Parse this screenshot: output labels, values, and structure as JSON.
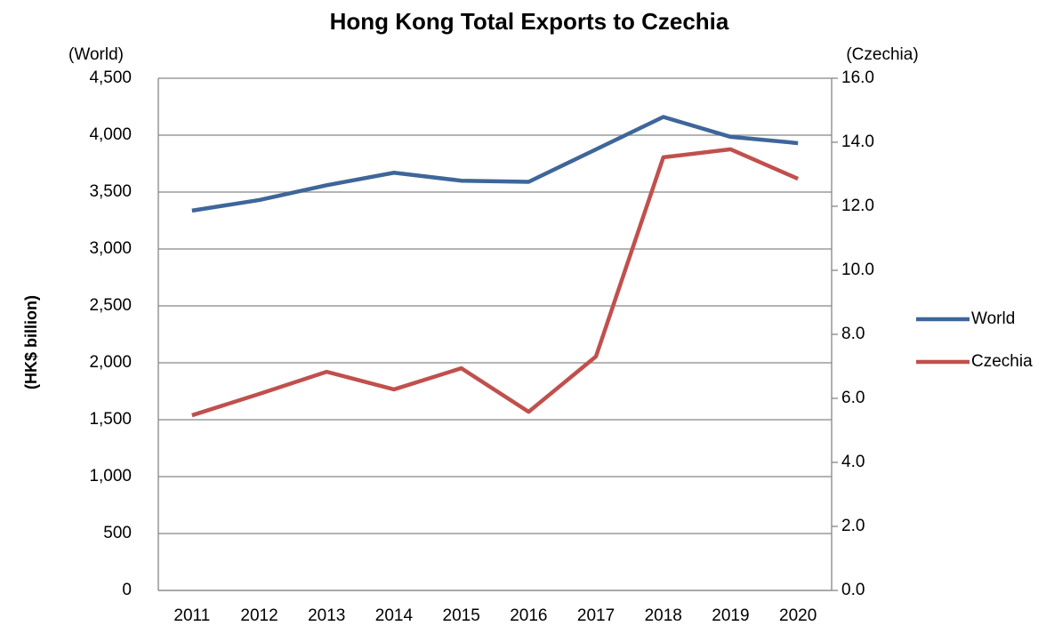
{
  "chart_data": {
    "type": "line",
    "title": "Hong Kong Total Exports to Czechia",
    "y_axis_label": "(HK$ billion)",
    "y_axis_title": "(World)",
    "y2_axis_title": "(Czechia)",
    "categories": [
      "2011",
      "2012",
      "2013",
      "2014",
      "2015",
      "2016",
      "2017",
      "2018",
      "2019",
      "2020"
    ],
    "series": [
      {
        "name": "World",
        "color": "#3e6699",
        "values": [
          3337,
          3430,
          3560,
          3670,
          3600,
          3590,
          3875,
          4160,
          3985,
          3930
        ]
      },
      {
        "name": "Czechia",
        "color": "#c0504d",
        "axis": "y2",
        "values": [
          5.47,
          6.14,
          6.83,
          6.28,
          6.94,
          5.58,
          7.31,
          13.53,
          13.78,
          12.86
        ]
      }
    ],
    "ylim": [
      0,
      4500
    ],
    "yticks": [
      0,
      500,
      {
        "value": 1000,
        "label": "1,000"
      },
      {
        "value": 1500,
        "label": "1,500"
      },
      {
        "value": 2000,
        "label": "2,000"
      },
      {
        "value": 2500,
        "label": "2,500"
      },
      {
        "value": 3000,
        "label": "3,000"
      },
      {
        "value": 3500,
        "label": "3,500"
      },
      {
        "value": 4000,
        "label": "4,000"
      },
      {
        "value": 4500,
        "label": "4,500"
      }
    ],
    "y2lim": [
      0,
      16
    ],
    "y2ticks": [
      {
        "value": 0,
        "label": "0.0"
      },
      {
        "value": 2,
        "label": "2.0"
      },
      {
        "value": 4,
        "label": "4.0"
      },
      {
        "value": 6,
        "label": "6.0"
      },
      {
        "value": 8,
        "label": "8.0"
      },
      {
        "value": 10,
        "label": "10.0"
      },
      {
        "value": 12,
        "label": "12.0"
      },
      {
        "value": 14,
        "label": "14.0"
      },
      {
        "value": 16,
        "label": "16.0"
      }
    ],
    "grid": true,
    "legend": "right"
  }
}
